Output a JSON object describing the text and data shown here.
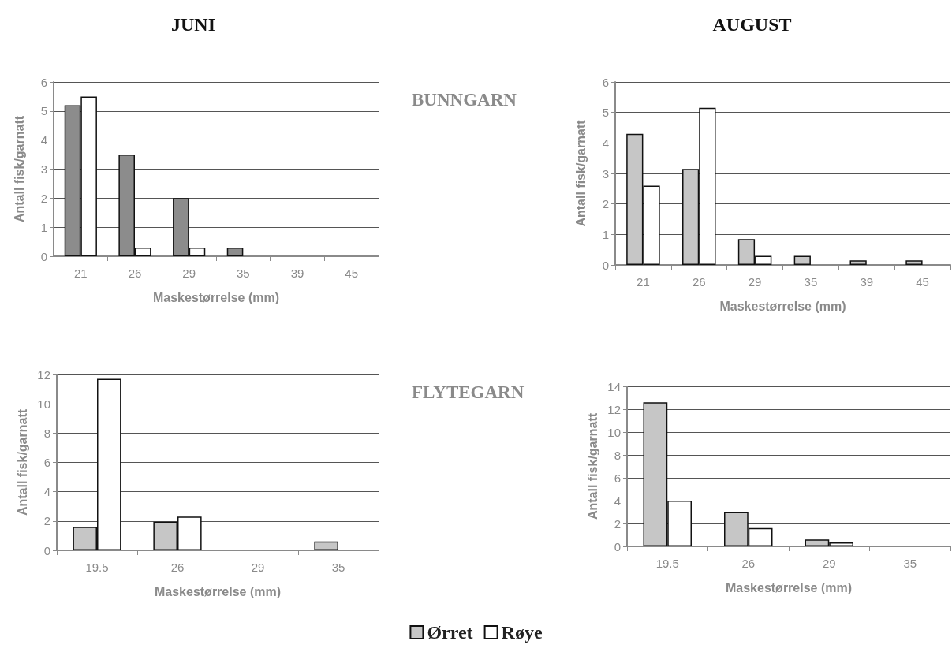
{
  "chart_data": [
    {
      "type": "bar",
      "title": "JUNI",
      "annotations": [
        "BUNNGARN"
      ],
      "xlabel": "Maskestørrelse (mm)",
      "ylabel": "Antall fisk/garnatt",
      "categories": [
        "21",
        "26",
        "29",
        "35",
        "39",
        "45"
      ],
      "series": [
        {
          "color": "#8c8c8c",
          "values": [
            5.2,
            3.5,
            2,
            0.3,
            null,
            null
          ]
        },
        {
          "color": "#ffffff",
          "values": [
            5.5,
            0.3,
            0.3,
            null,
            null,
            null
          ]
        }
      ],
      "ylim": [
        0,
        6
      ],
      "yticks": [
        0,
        1,
        2,
        3,
        4,
        5,
        6
      ],
      "grid": "y"
    },
    {
      "type": "bar",
      "title": "AUGUST",
      "xlabel": "Maskestørrelse (mm)",
      "ylabel": "Antall fisk/garnatt",
      "categories": [
        "21",
        "26",
        "29",
        "35",
        "39",
        "45"
      ],
      "series": [
        {
          "color": "#c6c6c6",
          "values": [
            4.3,
            3.15,
            0.85,
            0.3,
            0.15,
            0.15
          ]
        },
        {
          "color": "#ffffff",
          "values": [
            2.6,
            5.15,
            0.3,
            null,
            null,
            null
          ]
        }
      ],
      "ylim": [
        0,
        6
      ],
      "yticks": [
        0,
        1,
        2,
        3,
        4,
        5,
        6
      ],
      "grid": "y"
    },
    {
      "type": "bar",
      "annotations": [
        "FLYTEGARN"
      ],
      "xlabel": "Maskestørrelse (mm)",
      "ylabel": "Antall fisk/garnatt",
      "categories": [
        "19.5",
        "26",
        "29",
        "35"
      ],
      "series": [
        {
          "color": "#c6c6c6",
          "values": [
            1.6,
            1.95,
            null,
            0.6
          ]
        },
        {
          "color": "#ffffff",
          "values": [
            11.7,
            2.3,
            null,
            null
          ]
        }
      ],
      "ylim": [
        0,
        12
      ],
      "yticks": [
        0,
        2,
        4,
        6,
        8,
        10,
        12
      ],
      "grid": "y"
    },
    {
      "type": "bar",
      "xlabel": "Maskestørrelse (mm)",
      "ylabel": "Antall fisk/garnatt",
      "categories": [
        "19.5",
        "26",
        "29",
        "35"
      ],
      "series": [
        {
          "name": "Ørret",
          "color": "#c6c6c6",
          "values": [
            12.6,
            3.0,
            0.6,
            null
          ]
        },
        {
          "name": "Røye",
          "color": "#ffffff",
          "values": [
            4.0,
            1.6,
            0.35,
            null
          ]
        }
      ],
      "ylim": [
        0,
        14
      ],
      "yticks": [
        0,
        2,
        4,
        6,
        8,
        10,
        12,
        14
      ],
      "grid": "y",
      "legend": "bottom"
    }
  ]
}
